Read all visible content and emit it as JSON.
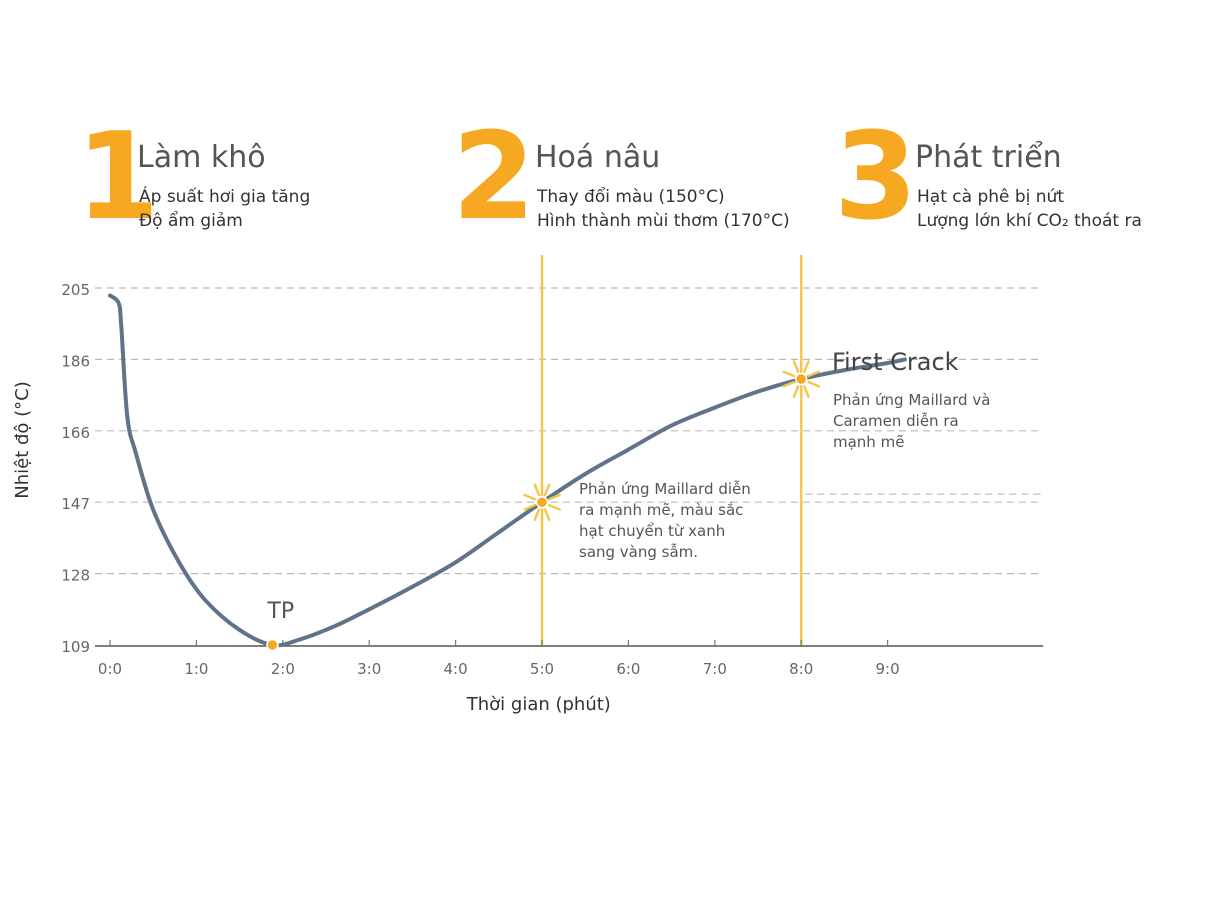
{
  "phases": [
    {
      "number": "1",
      "title": "Làm khô",
      "lines": [
        "Áp suất hơi gia tăng",
        "Độ ẩm giảm"
      ]
    },
    {
      "number": "2",
      "title": "Hoá nâu",
      "lines": [
        "Thay đổi màu (150°C)",
        "Hình thành mùi thơm (170°C)"
      ]
    },
    {
      "number": "3",
      "title": "Phát triển",
      "lines": [
        "Hạt cà phê bị nứt",
        "Lượng lớn khí CO₂ thoát ra"
      ]
    }
  ],
  "colors": {
    "curve": "#617389",
    "accent": "#f7a823",
    "marker_line": "#f2c94c",
    "grid": "#bbbbbb"
  },
  "chart_data": {
    "type": "line",
    "xlabel": "Thời gian (phút)",
    "ylabel": "Nhiệt độ (°C)",
    "x_ticks": [
      "0:0",
      "1:0",
      "2:0",
      "3:0",
      "4:0",
      "5:0",
      "6:0",
      "7:0",
      "8:0",
      "9:0"
    ],
    "y_ticks": [
      109,
      128,
      147,
      166,
      186,
      205
    ],
    "xlim": [
      0,
      10.8
    ],
    "ylim": [
      109,
      205
    ],
    "grid": "horizontal dashed",
    "series": [
      {
        "points": [
          [
            0.0,
            203
          ],
          [
            0.1,
            201
          ],
          [
            0.13,
            195
          ],
          [
            0.2,
            170
          ],
          [
            0.3,
            160
          ],
          [
            0.5,
            145
          ],
          [
            0.8,
            131
          ],
          [
            1.1,
            121
          ],
          [
            1.5,
            113
          ],
          [
            1.88,
            109
          ],
          [
            2.2,
            110.5
          ],
          [
            2.6,
            114
          ],
          [
            3.0,
            118.5
          ],
          [
            3.5,
            124.5
          ],
          [
            4.0,
            131
          ],
          [
            4.5,
            139
          ],
          [
            5.0,
            147
          ],
          [
            5.5,
            154.5
          ],
          [
            6.0,
            161
          ],
          [
            6.5,
            167.5
          ],
          [
            7.0,
            172.5
          ],
          [
            7.5,
            177
          ],
          [
            8.0,
            180.5
          ],
          [
            8.5,
            183
          ],
          [
            9.0,
            185
          ],
          [
            9.2,
            186
          ]
        ]
      }
    ],
    "markers": [
      {
        "x": 1.88,
        "y": 109,
        "label": "TP"
      },
      {
        "x": 5.0,
        "y": 147,
        "label": ""
      },
      {
        "x": 8.0,
        "y": 180.5,
        "label": "First Crack"
      }
    ],
    "vertical_lines": [
      5.0,
      8.0
    ],
    "annotations": [
      {
        "lines": [
          "Phản ứng Maillard diễn",
          "ra mạnh mẽ, màu sắc",
          "hạt chuyển từ xanh",
          "sang vàng sẫm."
        ]
      },
      {
        "lines": [
          "Phản ứng Maillard và",
          "Caramen diễn ra",
          "mạnh mẽ"
        ]
      }
    ]
  }
}
